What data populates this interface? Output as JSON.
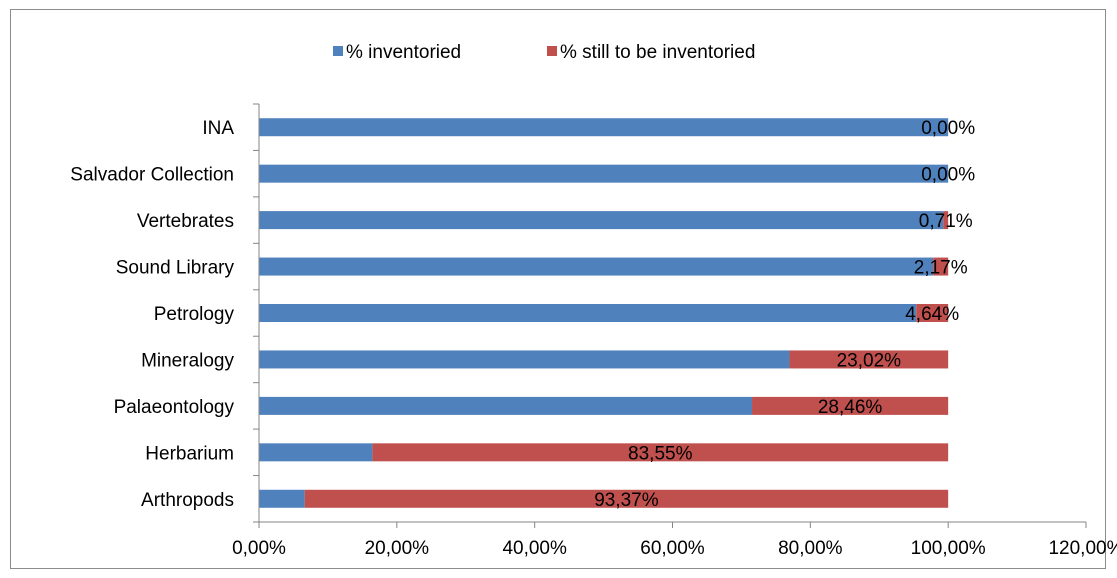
{
  "chart_data": {
    "type": "bar",
    "orientation": "horizontal",
    "stacked": true,
    "categories": [
      "INA",
      "Salvador Collection",
      "Vertebrates",
      "Sound Library",
      "Petrology",
      "Mineralogy",
      "Palaeontology",
      "Herbarium",
      "Arthropods"
    ],
    "series": [
      {
        "name": "% inventoried",
        "color": "#4f81bd",
        "values": [
          100.0,
          100.0,
          99.29,
          97.83,
          95.36,
          76.98,
          71.54,
          16.45,
          6.63
        ]
      },
      {
        "name": "% still to be inventoried",
        "color": "#c0504d",
        "values": [
          0.0,
          0.0,
          0.71,
          2.17,
          4.64,
          23.02,
          28.46,
          83.55,
          93.37
        ]
      }
    ],
    "data_labels": [
      "0,00%",
      "0,00%",
      "0,71%",
      "2,17%",
      "4,64%",
      "23,02%",
      "28,46%",
      "83,55%",
      "93,37%"
    ],
    "xlim": [
      0,
      120
    ],
    "x_ticks": [
      0,
      20,
      40,
      60,
      80,
      100,
      120
    ],
    "x_tick_labels": [
      "0,00%",
      "20,00%",
      "40,00%",
      "60,00%",
      "80,00%",
      "100,00%",
      "120,00%"
    ],
    "legend_position": "top",
    "grid": false
  }
}
